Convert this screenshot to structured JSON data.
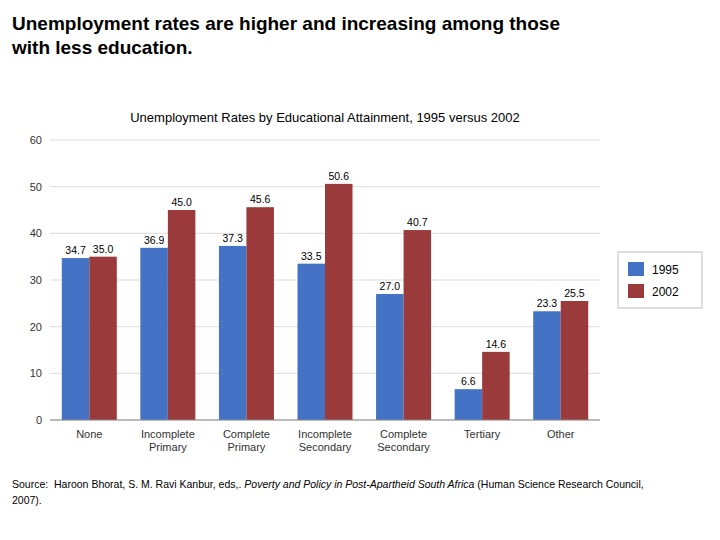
{
  "chart_data": {
    "type": "bar",
    "subtitle": "Unemployment rates are higher and increasing among those\nwith less education.",
    "title": "Unemployment Rates by Educational Attainment, 1995 versus 2002",
    "categories": [
      "None",
      "Incomplete\nPrimary",
      "Complete\nPrimary",
      "Incomplete\nSecondary",
      "Complete\nSecondary",
      "Tertiary",
      "Other"
    ],
    "series": [
      {
        "name": "1995",
        "color": "#4472C4",
        "values": [
          34.7,
          36.9,
          37.3,
          33.5,
          27.0,
          6.6,
          23.3
        ],
        "value_labels": [
          "34.7",
          "36.9",
          "37.3",
          "33.5",
          "27.0",
          "6.6",
          "23.3"
        ]
      },
      {
        "name": "2002",
        "color": "#9B3A3A",
        "values": [
          35.0,
          45.0,
          45.6,
          50.6,
          40.7,
          14.6,
          25.5
        ],
        "value_labels": [
          "35.0",
          "45.0",
          "45.6",
          "50.6",
          "40.7",
          "14.6",
          "25.5"
        ]
      }
    ],
    "ylim": [
      0,
      60
    ],
    "yticks": [
      0,
      10,
      20,
      30,
      40,
      50,
      60
    ],
    "grid": true,
    "legend": "right",
    "data_labels": true,
    "annotations": [
      "Source:  Haroon Bhorat, S. M. Ravi Kanbur, eds,. ",
      "Poverty and Policy in Post-Apartheid South Africa",
      " (Human Science Research Council,",
      "2007)."
    ]
  }
}
